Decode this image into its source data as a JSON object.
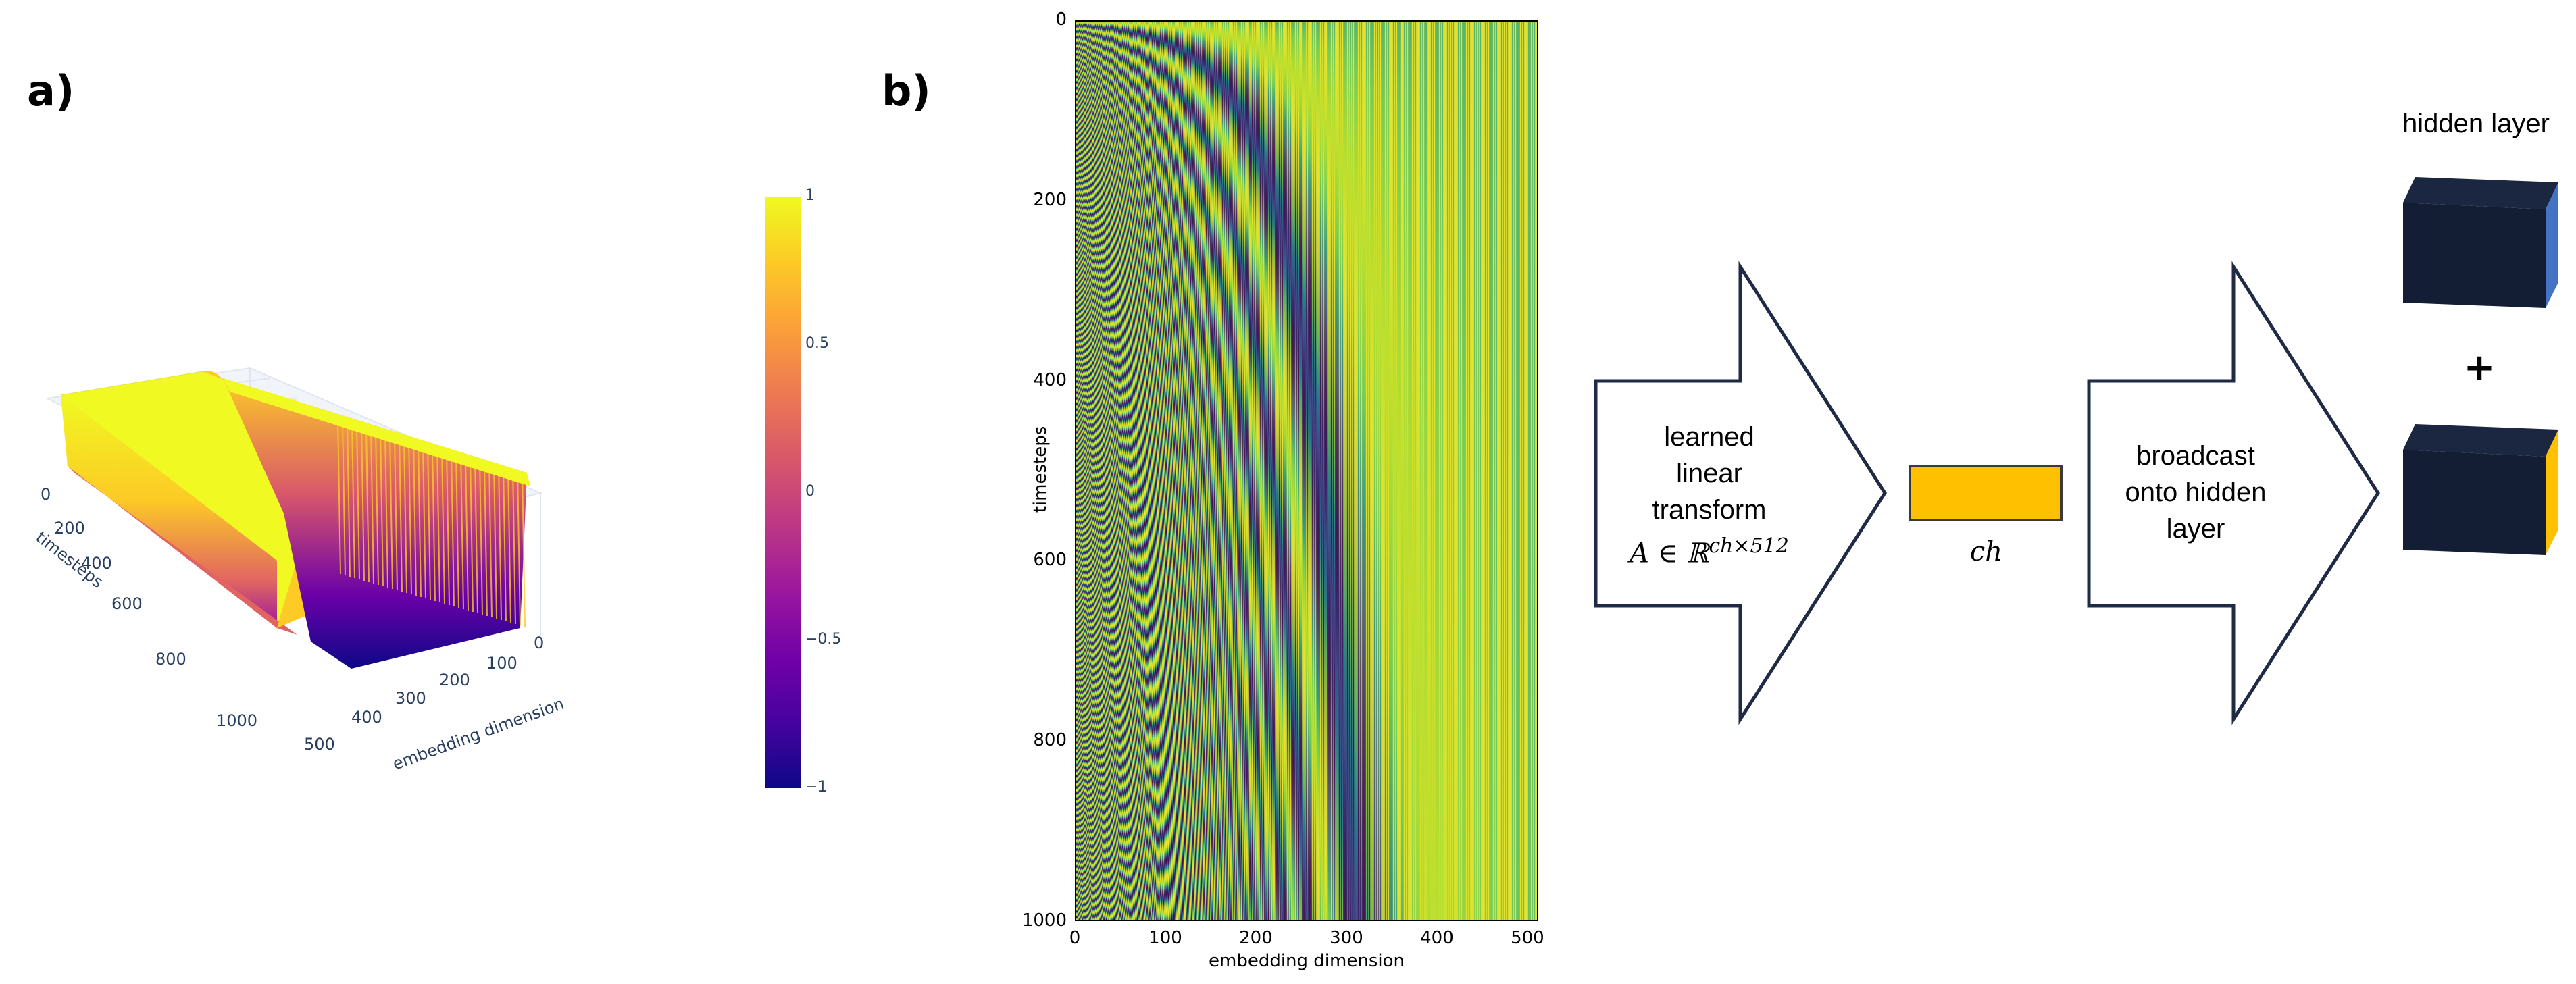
{
  "panel_a": {
    "label": "a)",
    "y_axis_title": "timesteps",
    "x_axis_title": "embedding dimension",
    "timestep_ticks": [
      "0",
      "200",
      "400",
      "600",
      "800",
      "1000"
    ],
    "dim_ticks": [
      "0",
      "100",
      "200",
      "300",
      "400",
      "500"
    ],
    "colorbar_ticks": [
      "1",
      "0.5",
      "0",
      "−0.5",
      "−1"
    ],
    "colorscale": [
      "#0d0887",
      "#46039f",
      "#7201a8",
      "#9c179e",
      "#bd3786",
      "#d8576b",
      "#ed7953",
      "#fb9f3a",
      "#fdca26",
      "#f0f921"
    ]
  },
  "panel_b": {
    "label": "b)",
    "y_axis_title": "timesteps",
    "x_axis_title": "embedding dimension",
    "y_ticks": [
      "0",
      "200",
      "400",
      "600",
      "800",
      "1000"
    ],
    "x_ticks": [
      "0",
      "100",
      "200",
      "300",
      "400",
      "500"
    ]
  },
  "diagram": {
    "arrow1_text": [
      "learned",
      "linear",
      "transform"
    ],
    "arrow1_math": "A ∈ ℝ",
    "arrow1_math_sup": "ch×512",
    "vector_label": "ch",
    "vector_color": "#ffc000",
    "arrow2_text": [
      "broadcast",
      "onto hidden",
      "layer"
    ],
    "hidden_layer_title": "hidden layer",
    "plus_sign": "+",
    "cube_dark": "#131e35",
    "cube_blue_face": "#4472c4",
    "cube_yellow_face": "#ffc000"
  }
}
